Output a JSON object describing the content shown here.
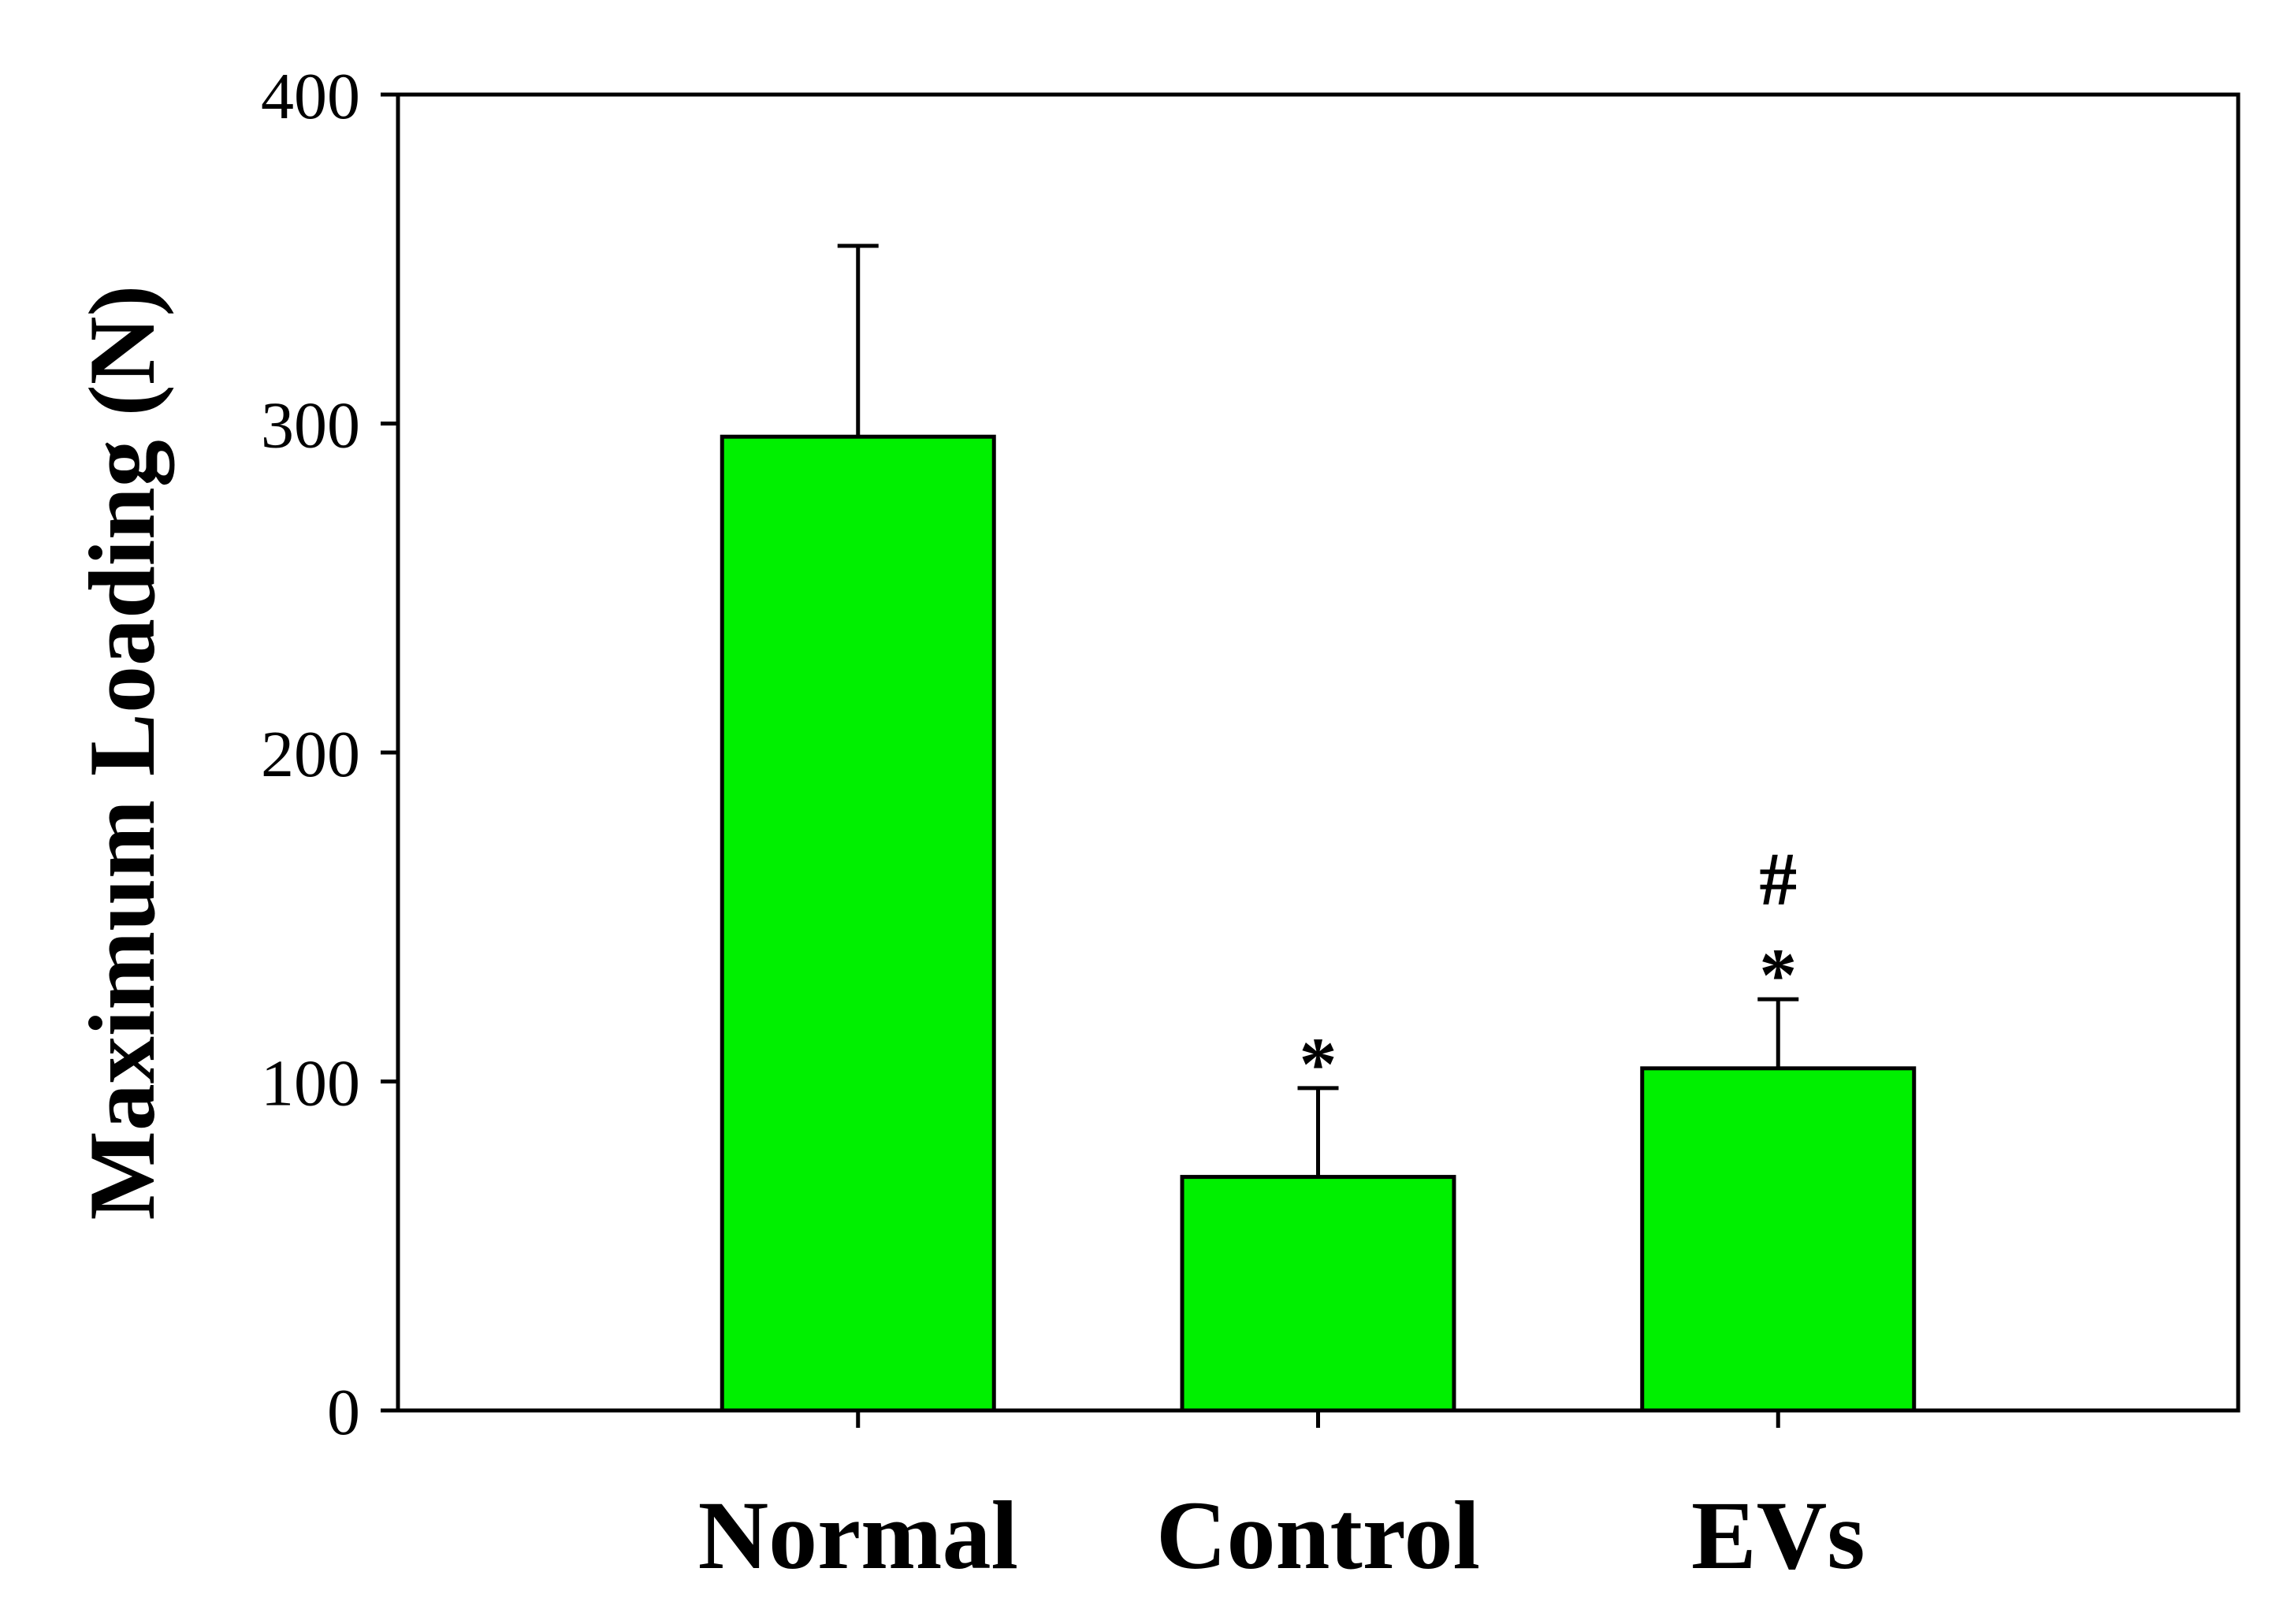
{
  "chart_data": {
    "type": "bar",
    "title": "",
    "xlabel": "",
    "ylabel": "Maximum Loading (N)",
    "categories": [
      "Normal",
      "Control",
      "EVs"
    ],
    "values": [
      296,
      71,
      104
    ],
    "error_upper": [
      58,
      27,
      21
    ],
    "annotations": [
      [],
      [
        "*"
      ],
      [
        "*",
        "#"
      ]
    ],
    "ylim": [
      0,
      400
    ],
    "yticks": [
      0,
      100,
      200,
      300,
      400
    ],
    "grid": false,
    "legend": "none",
    "bar_color": "#00F000",
    "edge_color": "#000000"
  }
}
